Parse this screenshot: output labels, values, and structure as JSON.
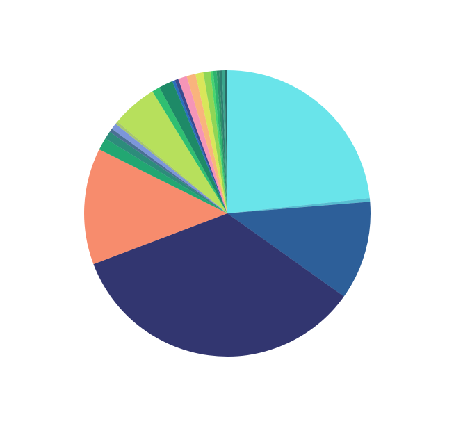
{
  "chart_data": {
    "type": "pie",
    "title": "",
    "start_angle_deg": 0,
    "direction": "clockwise",
    "slices": [
      {
        "value": 23.4,
        "color": "#69e4ea"
      },
      {
        "value": 0.4,
        "color": "#57bdd1"
      },
      {
        "value": 11.2,
        "color": "#2d5f99"
      },
      {
        "value": 34.5,
        "color": "#323670"
      },
      {
        "value": 13.2,
        "color": "#f78c6d"
      },
      {
        "value": 1.4,
        "color": "#22a772"
      },
      {
        "value": 0.9,
        "color": "#2d8c7b"
      },
      {
        "value": 0.4,
        "color": "#4a7094"
      },
      {
        "value": 0.7,
        "color": "#7c96d9"
      },
      {
        "value": 0.3,
        "color": "#a6c66e"
      },
      {
        "value": 5.2,
        "color": "#b7e05c"
      },
      {
        "value": 0.9,
        "color": "#2fbf71"
      },
      {
        "value": 1.6,
        "color": "#1e8a67"
      },
      {
        "value": 0.3,
        "color": "#2a6fbd"
      },
      {
        "value": 0.4,
        "color": "#3a4a8f"
      },
      {
        "value": 1.0,
        "color": "#f595b7"
      },
      {
        "value": 1.0,
        "color": "#f9b47d"
      },
      {
        "value": 0.9,
        "color": "#d9e65a"
      },
      {
        "value": 0.8,
        "color": "#8fd656"
      },
      {
        "value": 0.3,
        "color": "#46d46f"
      },
      {
        "value": 0.4,
        "color": "#2eb36f"
      },
      {
        "value": 0.3,
        "color": "#2c8f68"
      },
      {
        "value": 0.3,
        "color": "#2e7f71"
      },
      {
        "value": 0.3,
        "color": "#3aa58c"
      },
      {
        "value": 0.3,
        "color": "#2a6b67"
      }
    ]
  }
}
